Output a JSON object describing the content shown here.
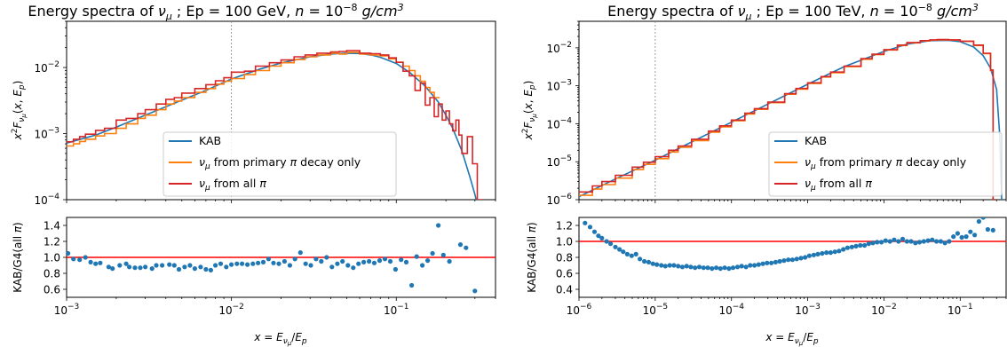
{
  "chart_data": [
    {
      "type": "line",
      "title": "Energy spectra of ν_μ ; Ep = 100 GeV, n = 10⁻⁸ g/cm³",
      "title_parts": {
        "a": "Energy spectra of ",
        "nu": "ν",
        "mu": "μ",
        "b": " ; Ep = 100 GeV, ",
        "n": "n",
        "eq": " = 10",
        "exp": "−8",
        "sp": " ",
        "unit": "g/cm",
        "unit_exp": "3"
      },
      "ylabel": "x²F_ν_μ(x, E_p)",
      "xscale": "log",
      "yscale": "log",
      "xlim": [
        0.001,
        0.4
      ],
      "ylim": [
        0.0001,
        0.05
      ],
      "x_ticks": [
        {
          "value": 0.001,
          "label_base": "10",
          "label_exp": "−3"
        },
        {
          "value": 0.01,
          "label_base": "10",
          "label_exp": "−2"
        },
        {
          "value": 0.1,
          "label_base": "10",
          "label_exp": "−1"
        }
      ],
      "y_ticks": [
        {
          "value": 0.0001,
          "label_base": "10",
          "label_exp": "−4"
        },
        {
          "value": 0.001,
          "label_base": "10",
          "label_exp": "−3"
        },
        {
          "value": 0.01,
          "label_base": "10",
          "label_exp": "−2"
        }
      ],
      "vline_x": 0.01,
      "legend_position": "lower-center",
      "legend": [
        "KAB",
        "ν_μ from primary π decay only",
        "ν_μ from all π"
      ],
      "series": [
        {
          "name": "KAB",
          "color": "#1f77b4",
          "style": "line",
          "x": [
            0.001,
            0.0015,
            0.002,
            0.003,
            0.005,
            0.007,
            0.01,
            0.015,
            0.02,
            0.03,
            0.04,
            0.05,
            0.06,
            0.07,
            0.08,
            0.1,
            0.12,
            0.15,
            0.18,
            0.2,
            0.22,
            0.25,
            0.28,
            0.3,
            0.32
          ],
          "y": [
            0.00072,
            0.00095,
            0.00125,
            0.0019,
            0.0032,
            0.0045,
            0.0067,
            0.0095,
            0.0117,
            0.0145,
            0.016,
            0.0165,
            0.0163,
            0.0155,
            0.0143,
            0.0115,
            0.0085,
            0.0052,
            0.003,
            0.0019,
            0.0012,
            0.00055,
            0.00022,
            0.00012,
            6e-05
          ]
        },
        {
          "name": "ν_μ from primary π decay only",
          "color": "#ff7f0e",
          "style": "step",
          "x": [
            0.001,
            0.0011,
            0.0012,
            0.0013,
            0.0015,
            0.0017,
            0.002,
            0.0023,
            0.0027,
            0.003,
            0.0035,
            0.004,
            0.0045,
            0.005,
            0.006,
            0.007,
            0.008,
            0.009,
            0.01,
            0.012,
            0.014,
            0.017,
            0.02,
            0.024,
            0.028,
            0.033,
            0.04,
            0.045,
            0.05,
            0.06,
            0.07,
            0.08,
            0.09,
            0.1,
            0.11,
            0.12,
            0.13,
            0.14,
            0.15,
            0.16,
            0.17
          ],
          "y": [
            0.00065,
            0.0007,
            0.00076,
            0.00082,
            0.00092,
            0.001,
            0.0012,
            0.0014,
            0.0017,
            0.0019,
            0.0023,
            0.0028,
            0.0031,
            0.0035,
            0.0042,
            0.0048,
            0.0056,
            0.0062,
            0.0068,
            0.0078,
            0.009,
            0.0105,
            0.0118,
            0.0132,
            0.0145,
            0.0155,
            0.0165,
            0.016,
            0.017,
            0.016,
            0.0155,
            0.015,
            0.0135,
            0.012,
            0.0105,
            0.009,
            0.0075,
            0.0062,
            0.005,
            0.0042,
            0.0035
          ]
        },
        {
          "name": "ν_μ from all π",
          "color": "#d62728",
          "style": "step",
          "x": [
            0.001,
            0.0011,
            0.0012,
            0.0013,
            0.0015,
            0.0017,
            0.002,
            0.0023,
            0.0027,
            0.003,
            0.0035,
            0.004,
            0.0045,
            0.005,
            0.006,
            0.007,
            0.008,
            0.009,
            0.01,
            0.012,
            0.014,
            0.017,
            0.02,
            0.024,
            0.028,
            0.033,
            0.04,
            0.045,
            0.05,
            0.06,
            0.07,
            0.08,
            0.09,
            0.1,
            0.11,
            0.12,
            0.13,
            0.14,
            0.15,
            0.16,
            0.17,
            0.18,
            0.19,
            0.2,
            0.21,
            0.22,
            0.23,
            0.24,
            0.25,
            0.27,
            0.29,
            0.31
          ],
          "y": [
            0.00075,
            0.00082,
            0.0009,
            0.00098,
            0.00112,
            0.0012,
            0.0016,
            0.0017,
            0.002,
            0.0023,
            0.0028,
            0.0033,
            0.0035,
            0.0041,
            0.0048,
            0.0055,
            0.0063,
            0.007,
            0.0085,
            0.0088,
            0.0105,
            0.0118,
            0.013,
            0.0145,
            0.0155,
            0.0165,
            0.0172,
            0.0175,
            0.018,
            0.0165,
            0.0162,
            0.0155,
            0.014,
            0.012,
            0.0088,
            0.0075,
            0.0045,
            0.0058,
            0.0027,
            0.0035,
            0.0018,
            0.0028,
            0.0016,
            0.0022,
            0.0014,
            0.0011,
            0.0016,
            0.00095,
            0.0005,
            0.0009,
            0.00035,
            0.0001
          ]
        }
      ],
      "ratio_panel": {
        "ylabel": "KAB/G4(all π)",
        "ylim": [
          0.5,
          1.5
        ],
        "y_ticks": [
          0.6,
          0.8,
          1.0,
          1.2,
          1.4
        ],
        "y_tick_labels": [
          "0.6",
          "0.8",
          "1.0",
          "1.2",
          "1.4"
        ],
        "xlabel": "x = E_ν_μ/E_p",
        "reference_line": 1.0,
        "reference_color": "#ff0000",
        "point_color": "#1f77b4",
        "x": [
          0.00102,
          0.0011,
          0.0012,
          0.0013,
          0.0014,
          0.0015,
          0.0016,
          0.0018,
          0.0019,
          0.0021,
          0.0023,
          0.0024,
          0.0026,
          0.0028,
          0.003,
          0.0033,
          0.0035,
          0.0038,
          0.0042,
          0.0045,
          0.0048,
          0.0052,
          0.0056,
          0.006,
          0.0065,
          0.007,
          0.0075,
          0.008,
          0.0086,
          0.0093,
          0.01,
          0.0108,
          0.0116,
          0.0125,
          0.0135,
          0.0145,
          0.0156,
          0.0168,
          0.018,
          0.0194,
          0.021,
          0.0226,
          0.0243,
          0.0262,
          0.0282,
          0.0303,
          0.0326,
          0.0351,
          0.0378,
          0.0407,
          0.0439,
          0.0472,
          0.0509,
          0.0548,
          0.059,
          0.0635,
          0.0684,
          0.0736,
          0.0793,
          0.0854,
          0.092,
          0.099,
          0.107,
          0.115,
          0.124,
          0.133,
          0.144,
          0.155,
          0.166,
          0.18,
          0.193,
          0.21,
          0.225,
          0.245,
          0.265,
          0.3
        ],
        "y": [
          1.05,
          0.98,
          0.97,
          1.0,
          0.94,
          0.92,
          0.93,
          0.88,
          0.86,
          0.9,
          0.92,
          0.88,
          0.87,
          0.87,
          0.88,
          0.86,
          0.9,
          0.9,
          0.91,
          0.9,
          0.85,
          0.88,
          0.9,
          0.86,
          0.88,
          0.85,
          0.84,
          0.9,
          0.92,
          0.88,
          0.91,
          0.92,
          0.92,
          0.91,
          0.92,
          0.93,
          0.94,
          0.98,
          0.93,
          0.92,
          0.95,
          0.9,
          0.98,
          1.06,
          0.92,
          0.9,
          0.98,
          0.95,
          1.0,
          0.88,
          0.92,
          0.95,
          0.9,
          0.87,
          0.92,
          0.94,
          0.95,
          0.93,
          0.96,
          0.98,
          0.95,
          0.85,
          0.97,
          0.94,
          0.65,
          1.01,
          0.9,
          0.96,
          1.05,
          1.4,
          1.03,
          0.95,
          1.55,
          1.16,
          1.12,
          0.58
        ]
      }
    },
    {
      "type": "line",
      "title": "Energy spectra of ν_μ ; Ep = 100 TeV, n = 10⁻⁸ g/cm³",
      "title_parts": {
        "a": "Energy spectra of ",
        "nu": "ν",
        "mu": "μ",
        "b": " ; Ep = 100 TeV, ",
        "n": "n",
        "eq": " = 10",
        "exp": "−8",
        "sp": " ",
        "unit": "g/cm",
        "unit_exp": "3"
      },
      "ylabel": "x²F_ν_μ(x, E_p)",
      "xscale": "log",
      "yscale": "log",
      "xlim": [
        1e-06,
        0.4
      ],
      "ylim": [
        1e-06,
        0.05
      ],
      "x_ticks": [
        {
          "value": 1e-06,
          "label_base": "10",
          "label_exp": "−6"
        },
        {
          "value": 1e-05,
          "label_base": "10",
          "label_exp": "−5"
        },
        {
          "value": 0.0001,
          "label_base": "10",
          "label_exp": "−4"
        },
        {
          "value": 0.001,
          "label_base": "10",
          "label_exp": "−3"
        },
        {
          "value": 0.01,
          "label_base": "10",
          "label_exp": "−2"
        },
        {
          "value": 0.1,
          "label_base": "10",
          "label_exp": "−1"
        }
      ],
      "y_ticks": [
        {
          "value": 1e-06,
          "label_base": "10",
          "label_exp": "−6"
        },
        {
          "value": 1e-05,
          "label_base": "10",
          "label_exp": "−5"
        },
        {
          "value": 0.0001,
          "label_base": "10",
          "label_exp": "−4"
        },
        {
          "value": 0.001,
          "label_base": "10",
          "label_exp": "−3"
        },
        {
          "value": 0.01,
          "label_base": "10",
          "label_exp": "−2"
        }
      ],
      "vline_x": 1e-05,
      "legend_position": "lower-right",
      "legend": [
        "KAB",
        "ν_μ from primary π decay only",
        "ν_μ from all π"
      ],
      "series": [
        {
          "name": "KAB",
          "color": "#1f77b4",
          "style": "line",
          "x": [
            1e-06,
            3e-06,
            1e-05,
            3e-05,
            0.0001,
            0.0003,
            0.001,
            0.003,
            0.01,
            0.02,
            0.04,
            0.07,
            0.1,
            0.15,
            0.2,
            0.25,
            0.3,
            0.33,
            0.35
          ],
          "y": [
            1.2e-06,
            3.5e-06,
            1.1e-05,
            3.3e-05,
            0.00011,
            0.00033,
            0.0011,
            0.0032,
            0.008,
            0.0125,
            0.0155,
            0.0158,
            0.0145,
            0.0105,
            0.0062,
            0.0029,
            0.0008,
            5e-05,
            1e-06
          ]
        },
        {
          "name": "ν_μ from primary π decay only",
          "color": "#ff7f0e",
          "style": "step",
          "x": [
            1e-06,
            1.5e-06,
            2e-06,
            3e-06,
            5e-06,
            7e-06,
            1e-05,
            1.5e-05,
            2e-05,
            3e-05,
            5e-05,
            7e-05,
            0.0001,
            0.00015,
            0.0002,
            0.0003,
            0.0005,
            0.0007,
            0.001,
            0.0015,
            0.002,
            0.003,
            0.005,
            0.007,
            0.01,
            0.015,
            0.02,
            0.03,
            0.04,
            0.05,
            0.07,
            0.1,
            0.15,
            0.2,
            0.25,
            0.27
          ],
          "y": [
            1.3e-06,
            1.9e-06,
            2.5e-06,
            3.7e-06,
            6.2e-06,
            8.5e-06,
            1.2e-05,
            1.8e-05,
            2.4e-05,
            3.6e-05,
            6e-05,
            8.3e-05,
            0.00012,
            0.00018,
            0.00024,
            0.00036,
            0.0006,
            0.00082,
            0.00115,
            0.0017,
            0.0022,
            0.0032,
            0.005,
            0.0066,
            0.0088,
            0.0115,
            0.0135,
            0.0152,
            0.016,
            0.0162,
            0.016,
            0.0148,
            0.0115,
            0.007,
            0.0025,
            1e-06
          ]
        },
        {
          "name": "ν_μ from all π",
          "color": "#d62728",
          "style": "step",
          "x": [
            1e-06,
            1.5e-06,
            2e-06,
            3e-06,
            5e-06,
            7e-06,
            1e-05,
            1.5e-05,
            2e-05,
            3e-05,
            5e-05,
            7e-05,
            0.0001,
            0.00015,
            0.0002,
            0.0003,
            0.0005,
            0.0007,
            0.001,
            0.0015,
            0.002,
            0.003,
            0.005,
            0.007,
            0.01,
            0.015,
            0.02,
            0.03,
            0.04,
            0.05,
            0.07,
            0.1,
            0.15,
            0.2,
            0.25,
            0.27
          ],
          "y": [
            1.6e-06,
            2.3e-06,
            3e-06,
            4.4e-06,
            7.2e-06,
            9.7e-06,
            1.35e-05,
            2e-05,
            2.6e-05,
            3.9e-05,
            6.4e-05,
            8.8e-05,
            0.000125,
            0.00019,
            0.00025,
            0.00037,
            0.00062,
            0.00085,
            0.0012,
            0.00175,
            0.0023,
            0.0033,
            0.0052,
            0.0068,
            0.009,
            0.0118,
            0.0138,
            0.0155,
            0.0162,
            0.0165,
            0.0162,
            0.015,
            0.0118,
            0.0072,
            0.0026,
            1e-06
          ]
        }
      ],
      "ratio_panel": {
        "ylabel": "KAB/G4(all π)",
        "ylim": [
          0.3,
          1.3
        ],
        "y_ticks": [
          0.4,
          0.6,
          0.8,
          1.0,
          1.2
        ],
        "y_tick_labels": [
          "0.4",
          "0.6",
          "0.8",
          "1.0",
          "1.2"
        ],
        "xlabel": "x = E_ν_μ/E_p",
        "reference_line": 1.0,
        "reference_color": "#ff0000",
        "point_color": "#1f77b4",
        "x": [
          1.2e-06,
          1.4e-06,
          1.6e-06,
          1.8e-06,
          2e-06,
          2.3e-06,
          2.6e-06,
          3e-06,
          3.4e-06,
          3.8e-06,
          4.3e-06,
          4.9e-06,
          5.6e-06,
          6.3e-06,
          7.2e-06,
          8.2e-06,
          9.3e-06,
          1.05e-05,
          1.2e-05,
          1.36e-05,
          1.55e-05,
          1.76e-05,
          2e-05,
          2.27e-05,
          2.58e-05,
          2.93e-05,
          3.33e-05,
          3.79e-05,
          4.3e-05,
          4.89e-05,
          5.56e-05,
          6.31e-05,
          7.17e-05,
          8.15e-05,
          9.26e-05,
          0.000105,
          0.00012,
          0.000136,
          0.000155,
          0.000176,
          0.0002,
          0.000227,
          0.000258,
          0.000293,
          0.000333,
          0.000379,
          0.00043,
          0.000489,
          0.000556,
          0.000631,
          0.000717,
          0.000815,
          0.000926,
          0.00105,
          0.0012,
          0.00136,
          0.00155,
          0.00176,
          0.002,
          0.00227,
          0.00258,
          0.00293,
          0.00333,
          0.00379,
          0.0043,
          0.00489,
          0.00556,
          0.00631,
          0.00717,
          0.00815,
          0.00926,
          0.0105,
          0.012,
          0.0136,
          0.0155,
          0.0176,
          0.02,
          0.0227,
          0.0258,
          0.0293,
          0.0333,
          0.0379,
          0.043,
          0.0489,
          0.0556,
          0.0631,
          0.0717,
          0.0815,
          0.0926,
          0.105,
          0.12,
          0.136,
          0.155,
          0.176,
          0.2,
          0.23,
          0.27
        ],
        "y": [
          1.23,
          1.18,
          1.12,
          1.07,
          1.04,
          1.0,
          0.97,
          0.93,
          0.9,
          0.87,
          0.84,
          0.82,
          0.84,
          0.78,
          0.75,
          0.74,
          0.72,
          0.71,
          0.7,
          0.69,
          0.7,
          0.7,
          0.69,
          0.68,
          0.69,
          0.68,
          0.67,
          0.68,
          0.67,
          0.67,
          0.66,
          0.67,
          0.66,
          0.67,
          0.66,
          0.67,
          0.68,
          0.69,
          0.68,
          0.7,
          0.7,
          0.71,
          0.72,
          0.73,
          0.73,
          0.74,
          0.75,
          0.76,
          0.77,
          0.77,
          0.78,
          0.79,
          0.8,
          0.82,
          0.83,
          0.84,
          0.85,
          0.86,
          0.86,
          0.87,
          0.88,
          0.9,
          0.92,
          0.93,
          0.94,
          0.95,
          0.95,
          0.97,
          0.98,
          0.99,
          0.99,
          1.01,
          1.0,
          1.02,
          1.0,
          1.03,
          1.0,
          1.0,
          0.98,
          0.99,
          1.0,
          1.01,
          1.02,
          1.0,
          1.0,
          0.98,
          1.0,
          1.06,
          1.1,
          1.05,
          1.06,
          1.12,
          1.08,
          1.25,
          1.3,
          1.15,
          1.14
        ]
      }
    }
  ]
}
